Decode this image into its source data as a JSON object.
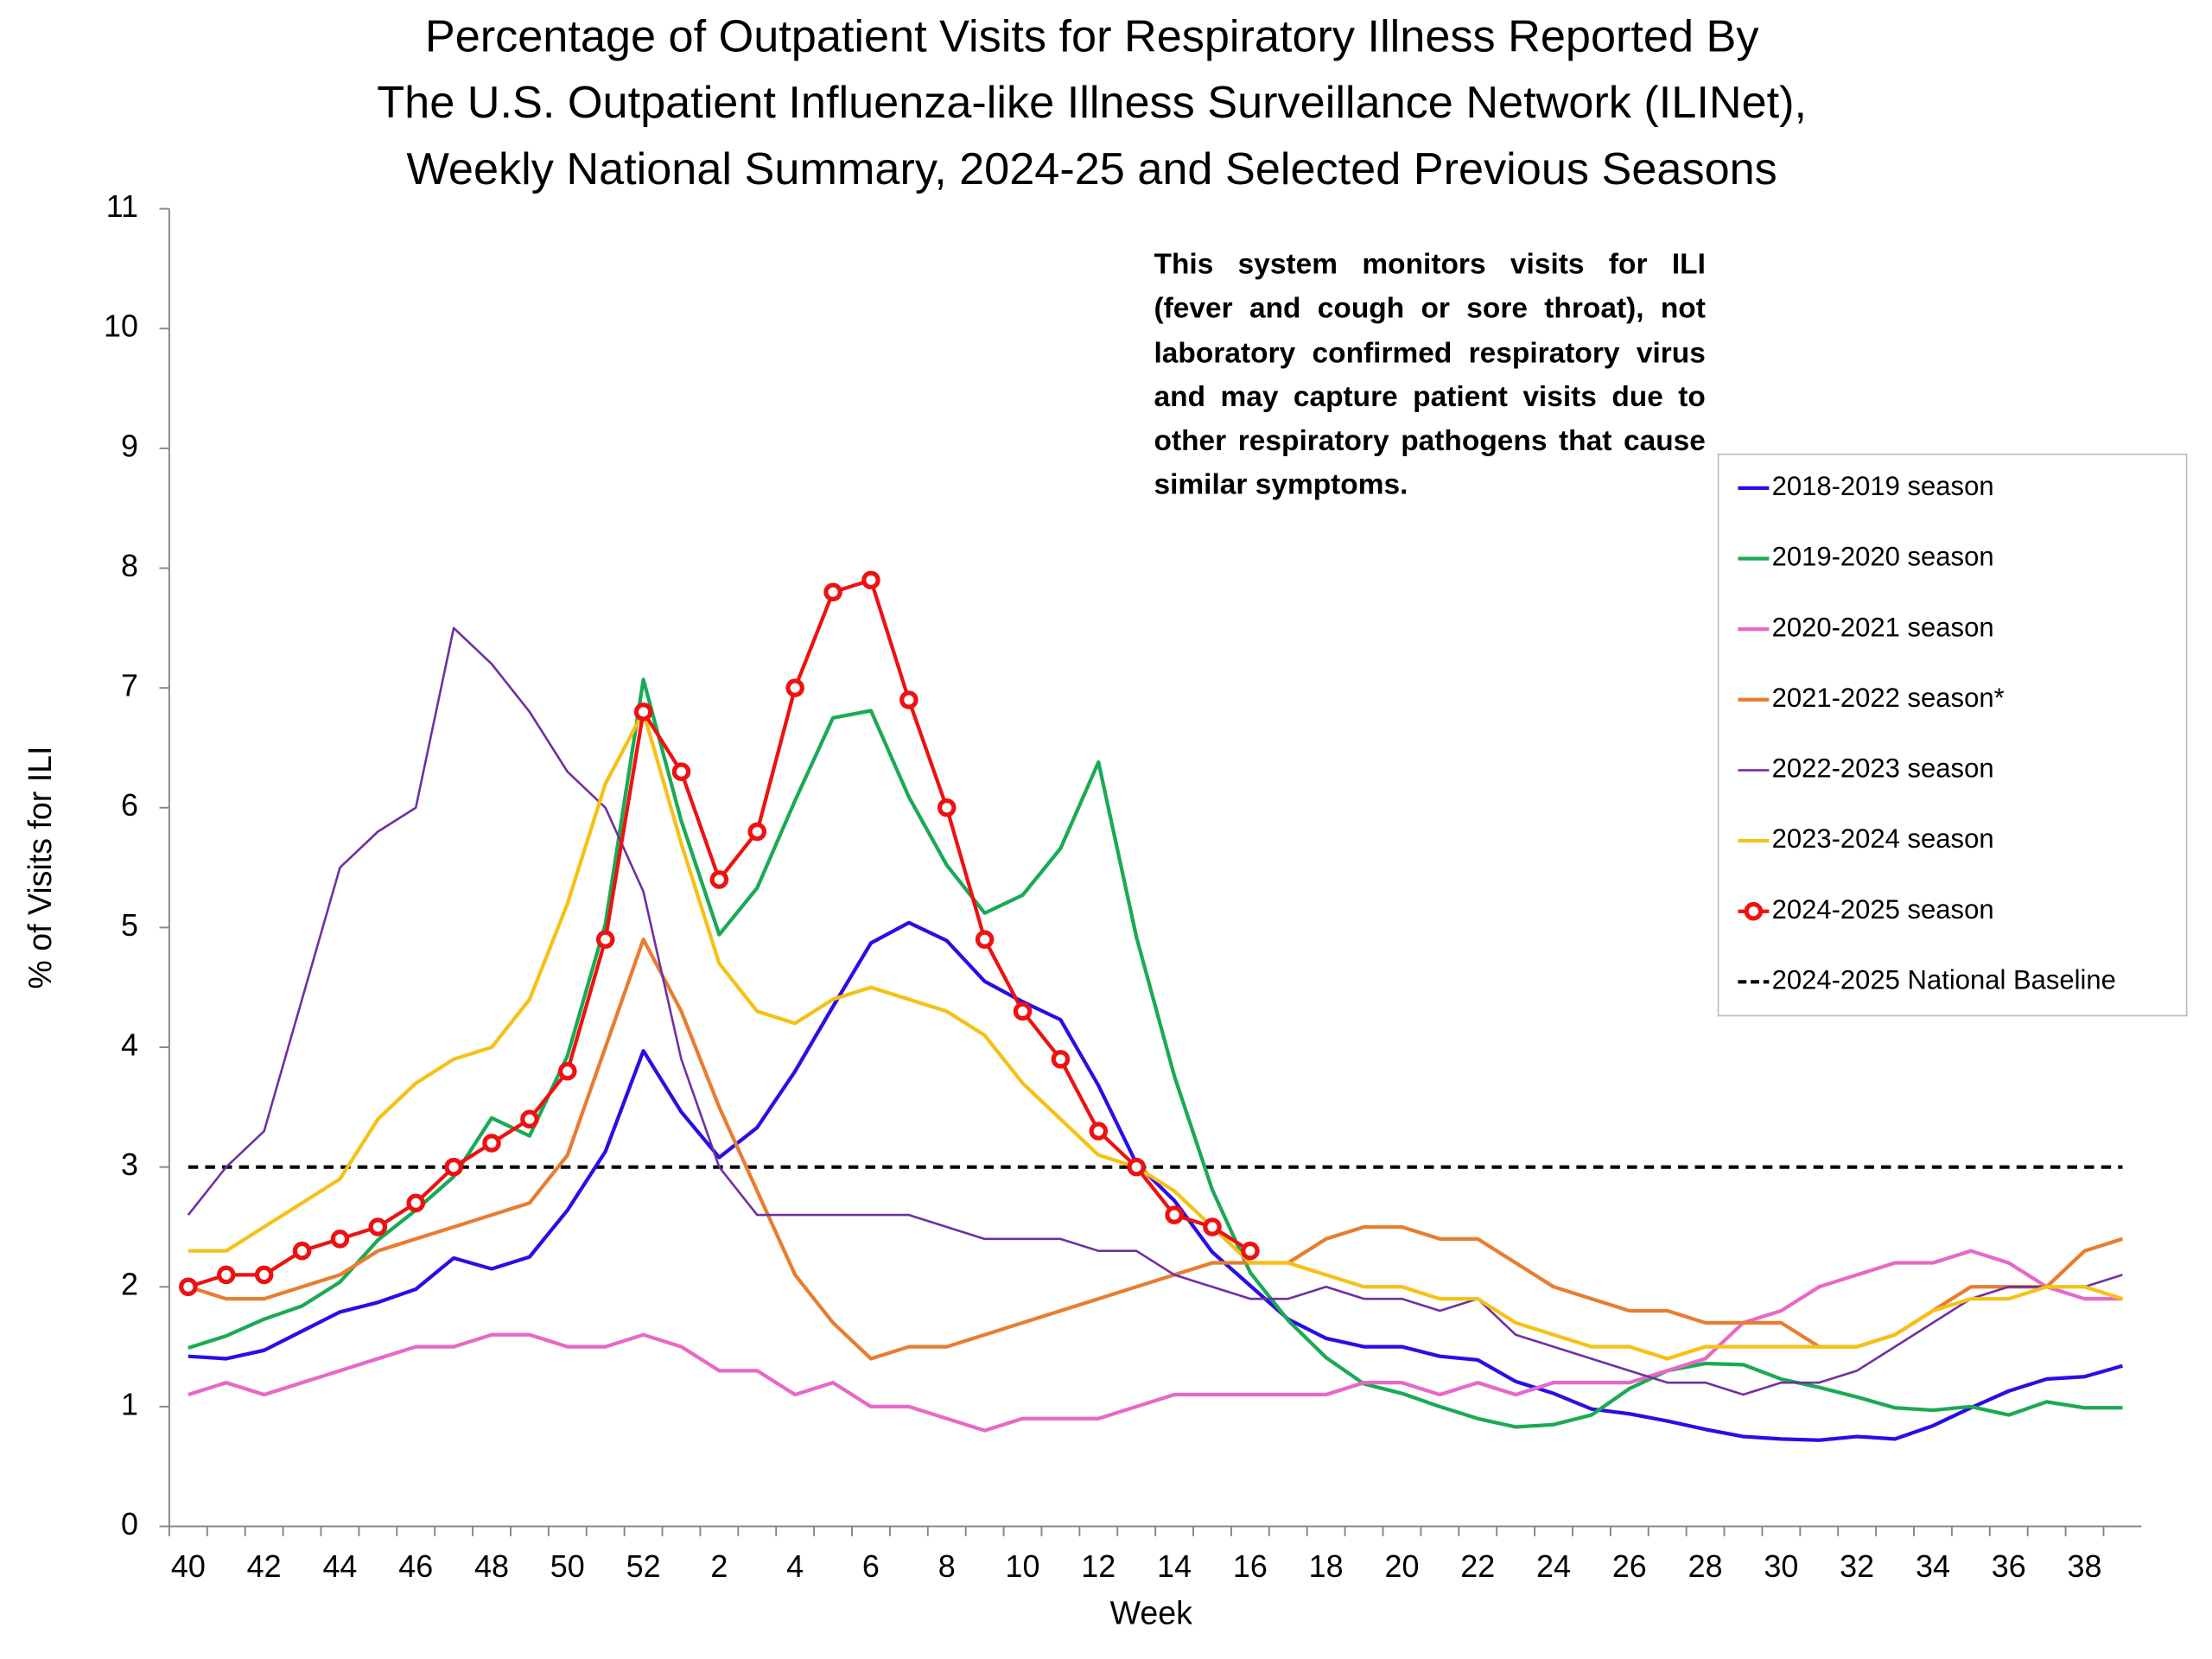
{
  "chart_data": {
    "type": "line",
    "title": [
      "Percentage of Outpatient Visits for Respiratory Illness Reported By",
      "The U.S. Outpatient Influenza-like Illness Surveillance Network (ILINet),",
      "Weekly National Summary, 2024-25 and Selected Previous Seasons"
    ],
    "annotation": "This system monitors visits for ILI (fever and cough or sore throat), not laboratory confirmed respiratory virus and may capture patient visits due to other respiratory pathogens that cause similar symptoms.",
    "x_label": "Week",
    "y_label": "% of Visits for ILI",
    "categories": [
      "40",
      null,
      "42",
      null,
      "44",
      null,
      "46",
      null,
      "48",
      null,
      "50",
      null,
      "52",
      null,
      "2",
      null,
      "4",
      null,
      "6",
      null,
      "8",
      null,
      "10",
      null,
      "12",
      null,
      "14",
      null,
      "16",
      null,
      "18",
      null,
      "20",
      null,
      "22",
      null,
      "24",
      null,
      "26",
      null,
      "28",
      null,
      "30",
      null,
      "32",
      null,
      "34",
      null,
      "36",
      null,
      "38",
      null
    ],
    "ylim": [
      0,
      11
    ],
    "yticks": [
      0,
      1,
      2,
      3,
      4,
      5,
      6,
      7,
      8,
      9,
      10,
      11
    ],
    "series": [
      {
        "name": "2018-2019 season",
        "color": "#2a0ee6",
        "values": [
          1.42,
          1.4,
          1.47,
          1.63,
          1.79,
          1.87,
          1.98,
          2.24,
          2.15,
          2.25,
          2.64,
          3.13,
          3.97,
          3.46,
          3.08,
          3.33,
          3.8,
          4.34,
          4.87,
          5.04,
          4.89,
          4.55,
          4.38,
          4.23,
          3.68,
          3.03,
          2.72,
          2.29,
          2.01,
          1.73,
          1.57,
          1.5,
          1.5,
          1.42,
          1.39,
          1.21,
          1.11,
          0.98,
          0.94,
          0.88,
          0.81,
          0.75,
          0.73,
          0.72,
          0.75,
          0.73,
          0.84,
          0.99,
          1.13,
          1.23,
          1.25,
          1.34
        ]
      },
      {
        "name": "2019-2020 season",
        "color": "#1aaa55",
        "values": [
          1.49,
          1.59,
          1.73,
          1.84,
          2.04,
          2.39,
          2.64,
          2.92,
          3.41,
          3.26,
          3.93,
          5.03,
          7.07,
          5.89,
          4.94,
          5.33,
          6.06,
          6.75,
          6.81,
          6.09,
          5.52,
          5.12,
          5.27,
          5.66,
          6.38,
          4.92,
          3.76,
          2.81,
          2.12,
          1.72,
          1.41,
          1.19,
          1.11,
          1.0,
          0.9,
          0.83,
          0.85,
          0.93,
          1.15,
          1.3,
          1.36,
          1.35,
          1.23,
          1.16,
          1.08,
          0.99,
          0.97,
          1.0,
          0.93,
          1.04,
          0.99,
          0.99
        ]
      },
      {
        "name": "2020-2021 season",
        "color": "#e868c8",
        "values": [
          1.1,
          1.2,
          1.1,
          1.2,
          1.3,
          1.4,
          1.5,
          1.5,
          1.6,
          1.6,
          1.5,
          1.5,
          1.6,
          1.5,
          1.3,
          1.3,
          1.1,
          1.2,
          1.0,
          1.0,
          0.9,
          0.8,
          0.9,
          0.9,
          0.9,
          1.0,
          1.1,
          1.1,
          1.1,
          1.1,
          1.1,
          1.2,
          1.2,
          1.1,
          1.2,
          1.1,
          1.2,
          1.2,
          1.2,
          1.3,
          1.4,
          1.7,
          1.8,
          2.0,
          2.1,
          2.2,
          2.2,
          2.3,
          2.2,
          2.0,
          1.9,
          1.9
        ]
      },
      {
        "name": "2021-2022 season*",
        "color": "#e87d2f",
        "values": [
          2.0,
          1.9,
          1.9,
          2.0,
          2.1,
          2.3,
          2.4,
          2.5,
          2.6,
          2.7,
          3.1,
          4.0,
          4.9,
          4.3,
          3.5,
          2.8,
          2.1,
          1.7,
          1.4,
          1.5,
          1.5,
          1.6,
          1.7,
          1.8,
          1.9,
          2.0,
          2.1,
          2.2,
          2.2,
          2.2,
          2.4,
          2.5,
          2.5,
          2.4,
          2.4,
          2.2,
          2.0,
          1.9,
          1.8,
          1.8,
          1.7,
          1.7,
          1.7,
          1.5,
          1.5,
          1.6,
          1.8,
          2.0,
          2.0,
          2.0,
          2.3,
          2.4
        ]
      },
      {
        "name": "2022-2023 season",
        "color": "#7030a0",
        "values": [
          2.6,
          3.0,
          3.3,
          4.4,
          5.5,
          5.8,
          6.0,
          7.5,
          7.2,
          6.8,
          6.3,
          6.0,
          5.3,
          3.9,
          3.0,
          2.6,
          2.6,
          2.6,
          2.6,
          2.6,
          2.5,
          2.4,
          2.4,
          2.4,
          2.3,
          2.3,
          2.1,
          2.0,
          1.9,
          1.9,
          2.0,
          1.9,
          1.9,
          1.8,
          1.9,
          1.6,
          1.5,
          1.4,
          1.3,
          1.2,
          1.2,
          1.1,
          1.2,
          1.2,
          1.3,
          1.5,
          1.7,
          1.9,
          2.0,
          2.0,
          2.0,
          2.1
        ]
      },
      {
        "name": "2023-2024 season",
        "color": "#f5c116",
        "values": [
          2.3,
          2.3,
          2.5,
          2.7,
          2.9,
          3.4,
          3.7,
          3.9,
          4.0,
          4.4,
          5.2,
          6.2,
          6.8,
          5.7,
          4.7,
          4.3,
          4.2,
          4.4,
          4.5,
          4.4,
          4.3,
          4.1,
          3.7,
          3.4,
          3.1,
          3.0,
          2.8,
          2.5,
          2.2,
          2.2,
          2.1,
          2.0,
          2.0,
          1.9,
          1.9,
          1.7,
          1.6,
          1.5,
          1.5,
          1.4,
          1.5,
          1.5,
          1.5,
          1.5,
          1.5,
          1.6,
          1.8,
          1.9,
          1.9,
          2.0,
          2.0,
          1.9
        ]
      },
      {
        "name": "2024-2025 season",
        "color": "#ee1111",
        "markers": true,
        "values": [
          2.0,
          2.1,
          2.1,
          2.3,
          2.4,
          2.5,
          2.7,
          3.0,
          3.2,
          3.4,
          3.8,
          4.9,
          6.8,
          6.3,
          5.4,
          5.8,
          7.0,
          7.8,
          7.9,
          6.9,
          6.0,
          4.9,
          4.3,
          3.9,
          3.3,
          3.0,
          2.6,
          2.5,
          2.3,
          null,
          null,
          null,
          null,
          null,
          null,
          null,
          null,
          null,
          null,
          null,
          null,
          null,
          null,
          null,
          null,
          null,
          null,
          null,
          null,
          null,
          null,
          null
        ]
      }
    ],
    "baseline": {
      "name": "2024-2025 National Baseline",
      "color": "#000000",
      "value": 3
    }
  }
}
